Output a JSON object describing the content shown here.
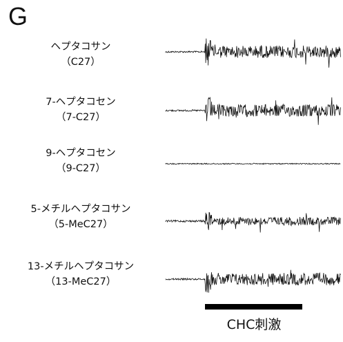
{
  "panel_label": "G",
  "recordings": [
    {
      "name": "ヘプタコサン",
      "abbr": "（C27）",
      "response": "strong"
    },
    {
      "name": "7-ヘプタコセン",
      "abbr": "（7-C27）",
      "response": "strong"
    },
    {
      "name": "9-ヘプタコセン",
      "abbr": "（9-C27）",
      "response": "none"
    },
    {
      "name": "5-メチルヘプタコサン",
      "abbr": "（5-MeC27）",
      "response": "moderate"
    },
    {
      "name": "13-メチルヘプタコサン",
      "abbr": "（13-MeC27）",
      "response": "strong"
    }
  ],
  "stimulus": {
    "label": "CHC刺激",
    "color": "#000000"
  },
  "colors": {
    "trace": "#111111",
    "text": "#111111",
    "background": "#ffffff"
  }
}
